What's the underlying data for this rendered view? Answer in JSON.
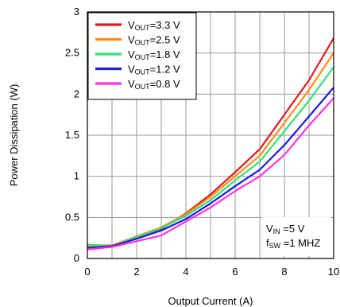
{
  "chart_data": {
    "type": "line",
    "xlabel": "Output Current (A)",
    "ylabel": "Power Dissipation (W)",
    "xlim": [
      0,
      10
    ],
    "ylim": [
      0,
      3
    ],
    "xticks": [
      0,
      2,
      4,
      6,
      8,
      10
    ],
    "yticks": [
      0,
      0.5,
      1,
      1.5,
      2,
      2.5,
      3
    ],
    "xtick_labels": [
      "0",
      "2",
      "4",
      "6",
      "8",
      "10"
    ],
    "ytick_labels": [
      "0",
      "0.5",
      "1",
      "1.5",
      "2",
      "2.5",
      "3"
    ],
    "grid": true,
    "legend_position": "top-left",
    "x": [
      0,
      1,
      2,
      3,
      4,
      5,
      6,
      7,
      8,
      9,
      10
    ],
    "series": [
      {
        "name": "V_OUT=3.3 V",
        "label_main": "V",
        "label_sub": "OUT",
        "label_rest": "=3.3 V",
        "color": "#e31a1c",
        "values": [
          0.16,
          0.16,
          0.26,
          0.36,
          0.55,
          0.78,
          1.05,
          1.33,
          1.75,
          2.17,
          2.68
        ]
      },
      {
        "name": "V_OUT=2.5 V",
        "label_main": "V",
        "label_sub": "OUT",
        "label_rest": "=2.5 V",
        "color": "#ff8c1a",
        "values": [
          0.15,
          0.16,
          0.27,
          0.38,
          0.54,
          0.75,
          1.0,
          1.25,
          1.65,
          2.05,
          2.5
        ]
      },
      {
        "name": "V_OUT=1.8 V",
        "label_main": "V",
        "label_sub": "OUT",
        "label_rest": "=1.8 V",
        "color": "#33e07a",
        "values": [
          0.17,
          0.15,
          0.26,
          0.37,
          0.52,
          0.71,
          0.95,
          1.18,
          1.55,
          1.92,
          2.33
        ]
      },
      {
        "name": "V_OUT=1.2 V",
        "label_main": "V",
        "label_sub": "OUT",
        "label_rest": "=1.2 V",
        "color": "#1a1ae6",
        "values": [
          0.13,
          0.15,
          0.24,
          0.34,
          0.48,
          0.67,
          0.88,
          1.08,
          1.38,
          1.73,
          2.08
        ]
      },
      {
        "name": "V_OUT=0.8 V",
        "label_main": "V",
        "label_sub": "OUT",
        "label_rest": "=0.8 V",
        "color": "#ff33dd",
        "values": [
          0.11,
          0.14,
          0.21,
          0.28,
          0.45,
          0.62,
          0.82,
          1.0,
          1.26,
          1.62,
          1.95
        ]
      }
    ],
    "annotations": [
      {
        "main": "V",
        "sub": "IN",
        "rest": " =5 V"
      },
      {
        "main": "f",
        "sub": "SW",
        "rest": " =1 MHZ"
      }
    ]
  }
}
